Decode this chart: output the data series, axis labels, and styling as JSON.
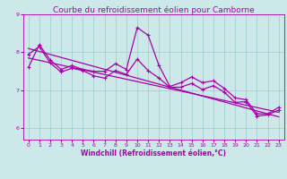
{
  "title": "Courbe du refroidissement éolien pour Camborne",
  "xlabel": "Windchill (Refroidissement éolien,°C)",
  "bg_color": "#cce8e8",
  "line_color": "#aa00aa",
  "grid_color": "#99cccc",
  "xlim": [
    -0.5,
    23.5
  ],
  "ylim": [
    5.7,
    9.0
  ],
  "yticks": [
    6,
    7,
    8,
    9
  ],
  "xticks": [
    0,
    1,
    2,
    3,
    4,
    5,
    6,
    7,
    8,
    9,
    10,
    11,
    12,
    13,
    14,
    15,
    16,
    17,
    18,
    19,
    20,
    21,
    22,
    23
  ],
  "series1_x": [
    0,
    1,
    2,
    3,
    4,
    5,
    6,
    7,
    8,
    9,
    10,
    11,
    12,
    13,
    14,
    15,
    16,
    17,
    18,
    19,
    20,
    21,
    22,
    23
  ],
  "series1_y": [
    7.6,
    8.2,
    7.8,
    7.55,
    7.65,
    7.55,
    7.5,
    7.5,
    7.7,
    7.55,
    8.65,
    8.45,
    7.65,
    7.1,
    7.2,
    7.35,
    7.2,
    7.25,
    7.05,
    6.8,
    6.75,
    6.38,
    6.38,
    6.55
  ],
  "series2_x": [
    0,
    1,
    2,
    3,
    4,
    5,
    6,
    7,
    8,
    9,
    10,
    11,
    12,
    13,
    14,
    15,
    16,
    17,
    18,
    19,
    20,
    21,
    22,
    23
  ],
  "series2_y": [
    7.95,
    8.15,
    7.72,
    7.48,
    7.58,
    7.52,
    7.38,
    7.32,
    7.52,
    7.42,
    7.82,
    7.52,
    7.32,
    7.08,
    7.08,
    7.18,
    7.02,
    7.12,
    6.95,
    6.68,
    6.7,
    6.32,
    6.35,
    6.48
  ],
  "series3_x": [
    0,
    23
  ],
  "series3_y": [
    8.1,
    6.3
  ],
  "series4_x": [
    0,
    23
  ],
  "series4_y": [
    7.85,
    6.42
  ],
  "marker": "+",
  "markersize": 3.5,
  "linewidth": 0.9,
  "title_fontsize": 6.5,
  "tick_fontsize": 4.5,
  "xlabel_fontsize": 5.5
}
